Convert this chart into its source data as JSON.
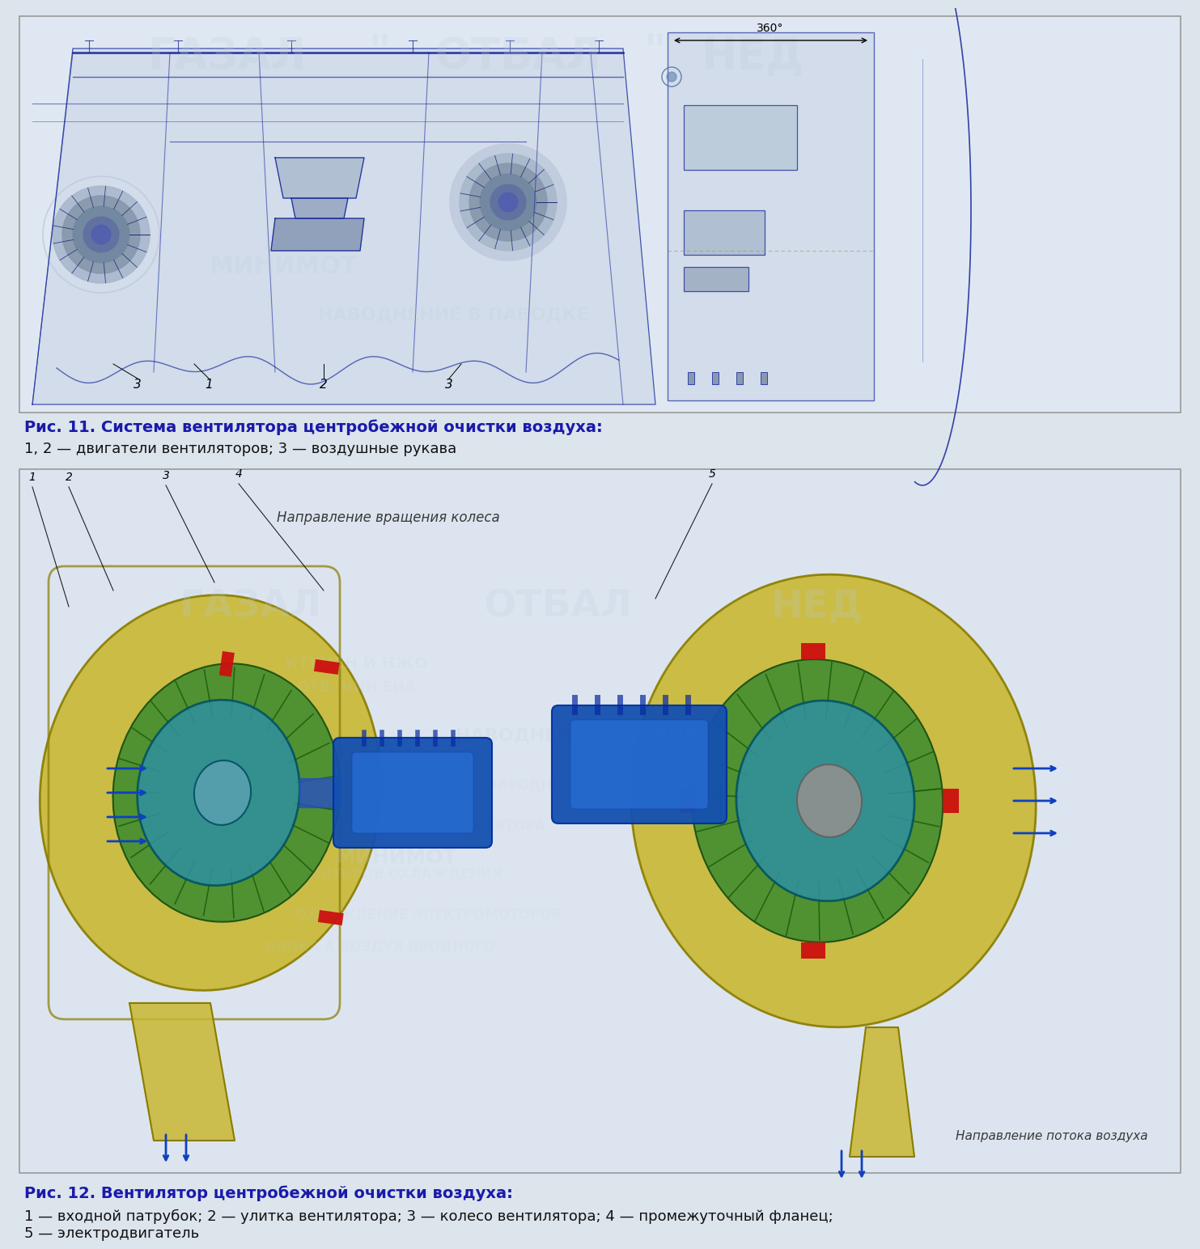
{
  "background_color": "#dce4ec",
  "fig1_bg": "#dfe8f2",
  "fig2_bg": "#dfe8f2",
  "caption1_title": "Рис. 11. Система вентилятора центробежной очистки воздуха:",
  "caption1_body": "1, 2 — двигатели вентиляторов; 3 — воздушные рукава",
  "caption2_title": "Рис. 12. Вентилятор центробежной очистки воздуха:",
  "caption2_body": "1 — входной патрубок; 2 — улитка вентилятора; 3 — колесо вентилятора; 4 — промежуточный фланец;\n5 — электродвигатель",
  "caption_title_color": "#1a1aaa",
  "caption_body_color": "#111111",
  "caption_title_fontsize": 14,
  "caption_body_fontsize": 13,
  "border_color": "#999999",
  "blue_line": "#2030a0",
  "dark_blue": "#1a1a6e",
  "annotation_italic_color": "#555555",
  "yellow_fill": "#c8b832",
  "yellow_edge": "#8a7c00",
  "green_fill": "#4a9030",
  "green_edge": "#1a5010",
  "cyan_fill": "#3090a0",
  "cyan_edge": "#005060",
  "blue_motor": "#1450b0",
  "blue_motor_light": "#2870d8",
  "red_accent": "#cc1010",
  "arrow_blue": "#1040c0",
  "gray_hub": "#909090",
  "watermark_texts": [
    "ГАЗАЛ",
    "ОТБАЛ",
    "НЕД"
  ],
  "watermark_color": "#c0cedd",
  "wm_fs": 32
}
